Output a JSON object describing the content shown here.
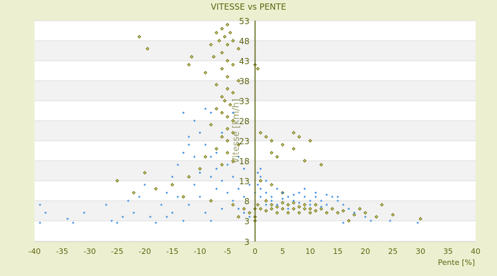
{
  "chart_data": {
    "type": "scatter",
    "title": "VITESSE vs PENTE",
    "xlabel": "Pente [%]",
    "ylabel": "Vitesse [km/h]",
    "xlim": [
      -40,
      40
    ],
    "ylim": [
      -2,
      53
    ],
    "xticks": [
      "-40",
      "-35",
      "-30",
      "-25",
      "-20",
      "-15",
      "-10",
      "-5",
      "0",
      "5",
      "10",
      "15",
      "20",
      "25",
      "30",
      "35",
      "40"
    ],
    "yticks": [
      "53",
      "48",
      "43",
      "38",
      "33",
      "28",
      "23",
      "18",
      "13",
      "8",
      "3",
      "3"
    ],
    "grid": true,
    "band_colors": [
      "#ffffff",
      "#f2f2f2"
    ],
    "series": [
      {
        "color": "#6b6b00",
        "marker": "diamond",
        "points": [
          [
            -5,
            52
          ],
          [
            -6,
            51
          ],
          [
            -4.5,
            50
          ],
          [
            -7,
            50
          ],
          [
            -5.5,
            49
          ],
          [
            -6.5,
            48
          ],
          [
            -4,
            48
          ],
          [
            -8,
            47
          ],
          [
            -5,
            47
          ],
          [
            -3,
            46
          ],
          [
            -6,
            45
          ],
          [
            -7.5,
            44
          ],
          [
            -5,
            43
          ],
          [
            -4,
            42
          ],
          [
            -6,
            41
          ],
          [
            -9,
            40
          ],
          [
            -5,
            39
          ],
          [
            -3,
            38
          ],
          [
            -7,
            37
          ],
          [
            -5,
            36
          ],
          [
            -4,
            35
          ],
          [
            -6,
            34
          ],
          [
            -5.5,
            33
          ],
          [
            -4.5,
            32
          ],
          [
            -7,
            31
          ],
          [
            -6,
            30
          ],
          [
            -5,
            29
          ],
          [
            -4,
            28
          ],
          [
            -8,
            27
          ],
          [
            -5,
            26
          ],
          [
            -4,
            25
          ],
          [
            -6,
            24
          ],
          [
            -5,
            23
          ],
          [
            -3,
            22
          ],
          [
            -7,
            21
          ],
          [
            -5,
            20
          ],
          [
            -9,
            19
          ],
          [
            -4,
            18
          ],
          [
            -6,
            17
          ],
          [
            -10,
            16
          ],
          [
            -12,
            14
          ],
          [
            -15,
            12
          ],
          [
            -18,
            11
          ],
          [
            -22,
            10
          ],
          [
            -25,
            13
          ],
          [
            -20,
            15
          ],
          [
            -13,
            9
          ],
          [
            -8,
            8
          ],
          [
            -4,
            7
          ],
          [
            -2,
            6
          ],
          [
            -1,
            5
          ],
          [
            0,
            4
          ],
          [
            0,
            3
          ],
          [
            0,
            6
          ],
          [
            -3,
            4
          ],
          [
            -21,
            49
          ],
          [
            -19.5,
            46
          ],
          [
            -11.5,
            44
          ],
          [
            -12,
            42
          ],
          [
            0,
            42
          ],
          [
            0.5,
            41
          ],
          [
            1,
            25
          ],
          [
            2,
            24
          ],
          [
            3,
            23
          ],
          [
            5,
            22
          ],
          [
            7,
            25
          ],
          [
            8,
            24
          ],
          [
            10,
            23
          ],
          [
            7,
            21
          ],
          [
            3,
            20
          ],
          [
            4,
            19
          ],
          [
            9,
            18
          ],
          [
            12,
            17
          ],
          [
            1,
            13
          ],
          [
            3,
            12
          ],
          [
            5,
            10
          ],
          [
            2,
            8
          ],
          [
            3,
            7
          ],
          [
            4,
            6.5
          ],
          [
            5,
            6
          ],
          [
            6,
            7
          ],
          [
            7,
            6
          ],
          [
            8,
            6.5
          ],
          [
            9,
            7
          ],
          [
            10,
            6
          ],
          [
            11,
            5.5
          ],
          [
            12,
            6
          ],
          [
            13,
            5
          ],
          [
            14,
            6
          ],
          [
            15,
            5
          ],
          [
            16,
            5.5
          ],
          [
            18,
            4.5
          ],
          [
            20,
            5
          ],
          [
            22,
            4
          ],
          [
            25,
            4.5
          ],
          [
            30,
            3.5
          ],
          [
            2,
            5.5
          ],
          [
            4,
            5
          ],
          [
            6,
            5
          ],
          [
            8,
            5
          ],
          [
            10,
            5
          ],
          [
            3,
            6
          ],
          [
            5,
            7.5
          ],
          [
            7,
            7.5
          ],
          [
            9,
            6
          ],
          [
            11,
            7
          ],
          [
            0.5,
            7
          ],
          [
            1,
            6
          ],
          [
            17,
            3
          ],
          [
            19,
            6
          ],
          [
            23,
            7
          ]
        ]
      },
      {
        "color": "#3d8fe0",
        "marker": "plus",
        "points": [
          [
            -39,
            7
          ],
          [
            -38,
            5
          ],
          [
            -39,
            2.5
          ],
          [
            -34,
            3.5
          ],
          [
            -33,
            2.5
          ],
          [
            -31,
            5
          ],
          [
            -25,
            2.5
          ],
          [
            -24,
            4
          ],
          [
            -23,
            8
          ],
          [
            -22,
            5
          ],
          [
            -21,
            9
          ],
          [
            -20,
            12
          ],
          [
            -19,
            4
          ],
          [
            -18,
            2.5
          ],
          [
            -17,
            7
          ],
          [
            -16,
            10
          ],
          [
            -15,
            14
          ],
          [
            -14,
            17
          ],
          [
            -13,
            20
          ],
          [
            -12,
            24
          ],
          [
            -13,
            30
          ],
          [
            -11,
            28
          ],
          [
            -10,
            25
          ],
          [
            -9,
            22
          ],
          [
            -8,
            19
          ],
          [
            -7,
            16
          ],
          [
            -6,
            13
          ],
          [
            -5,
            10
          ],
          [
            -4,
            8
          ],
          [
            -3,
            6
          ],
          [
            -2,
            5
          ],
          [
            -1,
            4
          ],
          [
            -11,
            12
          ],
          [
            -10,
            9
          ],
          [
            -12,
            7
          ],
          [
            -9,
            5
          ],
          [
            -8,
            3
          ],
          [
            -7,
            11
          ],
          [
            -6,
            6
          ],
          [
            -14,
            9
          ],
          [
            -15,
            5
          ],
          [
            -16,
            4
          ],
          [
            -13,
            3
          ],
          [
            -10,
            15
          ],
          [
            -8,
            14
          ],
          [
            -7,
            20
          ],
          [
            -5,
            17
          ],
          [
            -4,
            14
          ],
          [
            -3,
            11
          ],
          [
            -2,
            9
          ],
          [
            -1,
            12
          ],
          [
            0,
            10
          ],
          [
            -6,
            25
          ],
          [
            -4,
            30
          ],
          [
            -8,
            30
          ],
          [
            -9,
            31
          ],
          [
            1,
            14
          ],
          [
            2,
            13
          ],
          [
            1,
            11
          ],
          [
            2,
            10
          ],
          [
            3,
            9
          ],
          [
            4,
            11
          ],
          [
            5,
            10
          ],
          [
            6,
            9
          ],
          [
            7,
            8
          ],
          [
            8,
            10
          ],
          [
            9,
            9
          ],
          [
            10,
            8
          ],
          [
            11,
            9
          ],
          [
            12,
            8
          ],
          [
            13,
            7
          ],
          [
            14,
            9
          ],
          [
            15,
            8
          ],
          [
            16,
            7
          ],
          [
            17,
            6
          ],
          [
            18,
            5
          ],
          [
            20,
            4
          ],
          [
            3,
            8
          ],
          [
            5,
            8.5
          ],
          [
            7,
            9.5
          ],
          [
            9,
            11
          ],
          [
            11,
            10
          ],
          [
            13,
            9.5
          ],
          [
            15,
            9
          ],
          [
            2,
            7
          ],
          [
            4,
            7
          ],
          [
            6,
            6
          ],
          [
            8,
            7.5
          ],
          [
            10,
            7
          ],
          [
            12,
            6.5
          ],
          [
            1,
            9
          ],
          [
            0.5,
            12
          ],
          [
            0.5,
            15
          ],
          [
            1,
            16
          ],
          [
            24.5,
            3
          ],
          [
            29.5,
            2.5
          ],
          [
            21,
            3
          ],
          [
            16,
            2.5
          ],
          [
            -3,
            19
          ],
          [
            -2,
            16
          ],
          [
            -11,
            19
          ],
          [
            -12,
            22
          ],
          [
            -27,
            7
          ],
          [
            -26,
            3
          ]
        ]
      }
    ]
  }
}
